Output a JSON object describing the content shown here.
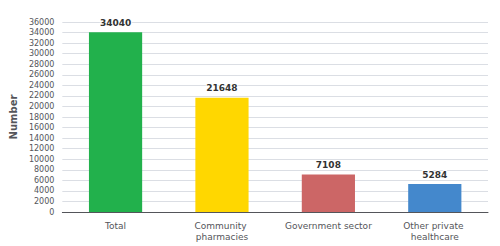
{
  "chart_data": {
    "type": "bar",
    "categories": [
      "Total",
      "Community pharmacies",
      "Government sector",
      "Other private healthcare"
    ],
    "values": [
      34040,
      21648,
      7108,
      5284
    ],
    "colors": [
      "#22B14C",
      "#FFD700",
      "#CC6666",
      "#4488CC"
    ],
    "ylabel": "Number",
    "ylim": [
      0,
      36000
    ],
    "yticks": [
      0,
      2000,
      4000,
      6000,
      8000,
      10000,
      12000,
      14000,
      16000,
      18000,
      20000,
      22000,
      24000,
      26000,
      28000,
      30000,
      32000,
      34000,
      36000
    ],
    "grid": true,
    "data_labels": true
  }
}
